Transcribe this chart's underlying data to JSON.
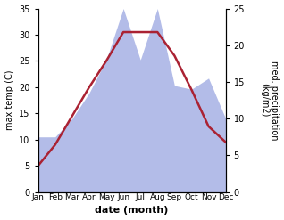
{
  "months": [
    "Jan",
    "Feb",
    "Mar",
    "Apr",
    "May",
    "Jun",
    "Jul",
    "Aug",
    "Sep",
    "Oct",
    "Nov",
    "Dec"
  ],
  "temperature": [
    5.0,
    9.0,
    14.5,
    20.0,
    25.0,
    30.5,
    30.5,
    30.5,
    26.0,
    19.5,
    12.5,
    9.5
  ],
  "precipitation": [
    7.5,
    7.5,
    10.0,
    13.5,
    18.0,
    25.0,
    18.0,
    25.0,
    14.5,
    14.0,
    15.5,
    10.0
  ],
  "temp_color": "#aa2233",
  "precip_color": "#b3bce8",
  "temp_ylim": [
    0,
    35
  ],
  "precip_ylim": [
    0,
    25
  ],
  "temp_yticks": [
    0,
    5,
    10,
    15,
    20,
    25,
    30,
    35
  ],
  "precip_yticks": [
    0,
    5,
    10,
    15,
    20,
    25
  ],
  "xlabel": "date (month)",
  "ylabel_left": "max temp (C)",
  "ylabel_right": "med. precipitation\n(kg/m2)",
  "bg_color": "#ffffff",
  "temp_linewidth": 1.8
}
